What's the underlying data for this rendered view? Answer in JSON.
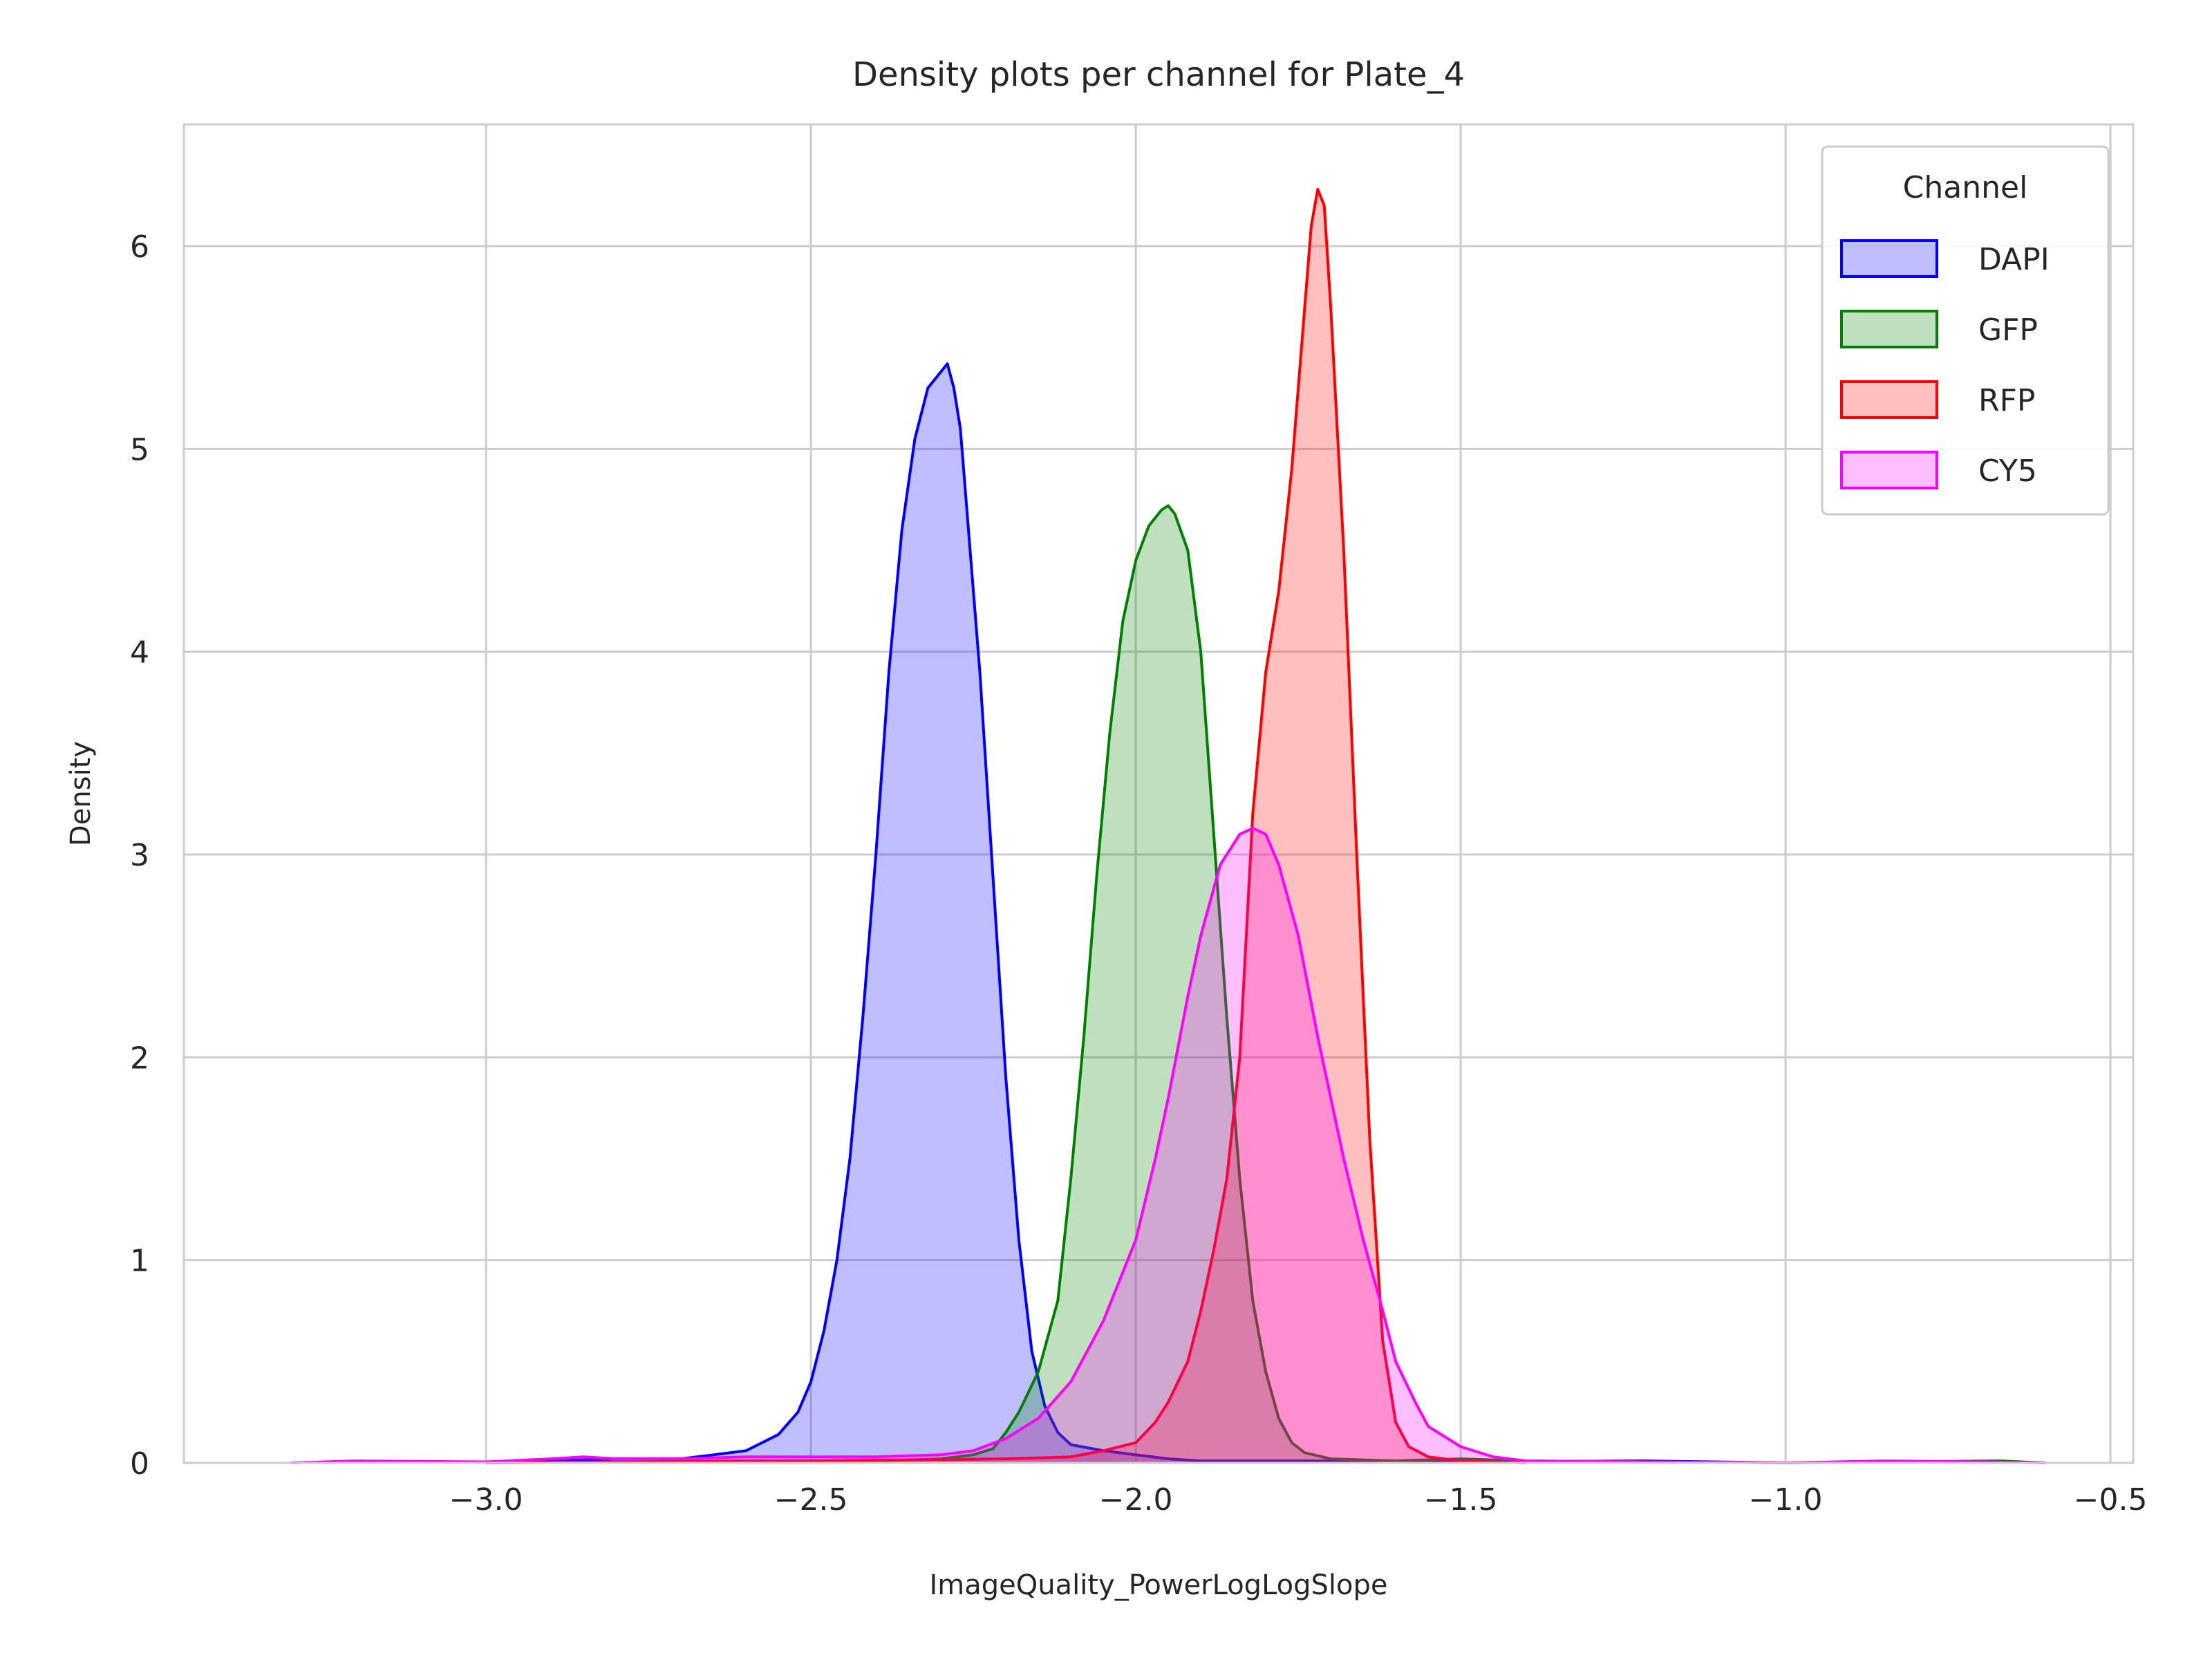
{
  "chart_data": {
    "type": "area",
    "title": "Density plots per channel for Plate_4",
    "xlabel": "ImageQuality_PowerLogLogSlope",
    "ylabel": "Density",
    "xlim": [
      -3.465,
      -0.465
    ],
    "ylim": [
      0,
      6.6
    ],
    "xticks": [
      -3.0,
      -2.5,
      -2.0,
      -1.5,
      -1.0,
      -0.5
    ],
    "xtick_labels": [
      "−3.0",
      "−2.5",
      "−2.0",
      "−1.5",
      "−1.0",
      "−0.5"
    ],
    "yticks": [
      0,
      1,
      2,
      3,
      4,
      5,
      6
    ],
    "ytick_labels": [
      "0",
      "1",
      "2",
      "3",
      "4",
      "5",
      "6"
    ],
    "grid": true,
    "legend": {
      "title": "Channel",
      "position": "top-right"
    },
    "series": [
      {
        "name": "DAPI",
        "color": "#0000ff",
        "fill_opacity": 0.25,
        "points": [
          [
            -3.0,
            0.0
          ],
          [
            -2.9,
            0.01
          ],
          [
            -2.8,
            0.02
          ],
          [
            -2.7,
            0.02
          ],
          [
            -2.65,
            0.04
          ],
          [
            -2.6,
            0.06
          ],
          [
            -2.55,
            0.14
          ],
          [
            -2.52,
            0.25
          ],
          [
            -2.5,
            0.4
          ],
          [
            -2.48,
            0.65
          ],
          [
            -2.46,
            1.0
          ],
          [
            -2.44,
            1.5
          ],
          [
            -2.42,
            2.2
          ],
          [
            -2.4,
            3.0
          ],
          [
            -2.38,
            3.9
          ],
          [
            -2.36,
            4.6
          ],
          [
            -2.34,
            5.05
          ],
          [
            -2.32,
            5.3
          ],
          [
            -2.3,
            5.38
          ],
          [
            -2.29,
            5.42
          ],
          [
            -2.28,
            5.3
          ],
          [
            -2.27,
            5.1
          ],
          [
            -2.26,
            4.7
          ],
          [
            -2.24,
            3.9
          ],
          [
            -2.22,
            2.9
          ],
          [
            -2.2,
            1.9
          ],
          [
            -2.18,
            1.1
          ],
          [
            -2.16,
            0.55
          ],
          [
            -2.14,
            0.28
          ],
          [
            -2.12,
            0.15
          ],
          [
            -2.1,
            0.09
          ],
          [
            -2.05,
            0.06
          ],
          [
            -2.0,
            0.04
          ],
          [
            -1.95,
            0.02
          ],
          [
            -1.9,
            0.01
          ],
          [
            -1.7,
            0.01
          ],
          [
            -1.5,
            0.005
          ],
          [
            -1.22,
            0.01
          ],
          [
            -1.0,
            0.0
          ]
        ]
      },
      {
        "name": "GFP",
        "color": "#008000",
        "fill_opacity": 0.25,
        "points": [
          [
            -3.0,
            0.0
          ],
          [
            -2.6,
            0.01
          ],
          [
            -2.4,
            0.01
          ],
          [
            -2.3,
            0.02
          ],
          [
            -2.25,
            0.04
          ],
          [
            -2.22,
            0.07
          ],
          [
            -2.2,
            0.15
          ],
          [
            -2.18,
            0.25
          ],
          [
            -2.15,
            0.45
          ],
          [
            -2.12,
            0.8
          ],
          [
            -2.1,
            1.4
          ],
          [
            -2.08,
            2.1
          ],
          [
            -2.06,
            2.9
          ],
          [
            -2.04,
            3.6
          ],
          [
            -2.02,
            4.15
          ],
          [
            -2.0,
            4.45
          ],
          [
            -1.98,
            4.62
          ],
          [
            -1.96,
            4.7
          ],
          [
            -1.95,
            4.72
          ],
          [
            -1.94,
            4.68
          ],
          [
            -1.92,
            4.5
          ],
          [
            -1.9,
            4.0
          ],
          [
            -1.88,
            3.1
          ],
          [
            -1.86,
            2.2
          ],
          [
            -1.84,
            1.4
          ],
          [
            -1.82,
            0.8
          ],
          [
            -1.8,
            0.45
          ],
          [
            -1.78,
            0.22
          ],
          [
            -1.76,
            0.1
          ],
          [
            -1.74,
            0.05
          ],
          [
            -1.7,
            0.02
          ],
          [
            -1.6,
            0.01
          ],
          [
            -1.5,
            0.02
          ],
          [
            -1.4,
            0.01
          ],
          [
            -1.0,
            0.0
          ],
          [
            -0.67,
            0.01
          ],
          [
            -0.6,
            0.0
          ]
        ]
      },
      {
        "name": "RFP",
        "color": "#ff0000",
        "fill_opacity": 0.25,
        "points": [
          [
            -3.0,
            0.0
          ],
          [
            -2.5,
            0.01
          ],
          [
            -2.2,
            0.02
          ],
          [
            -2.1,
            0.03
          ],
          [
            -2.05,
            0.06
          ],
          [
            -2.0,
            0.1
          ],
          [
            -1.97,
            0.2
          ],
          [
            -1.95,
            0.3
          ],
          [
            -1.92,
            0.5
          ],
          [
            -1.9,
            0.75
          ],
          [
            -1.88,
            1.05
          ],
          [
            -1.86,
            1.4
          ],
          [
            -1.84,
            2.0
          ],
          [
            -1.82,
            3.2
          ],
          [
            -1.8,
            3.9
          ],
          [
            -1.78,
            4.3
          ],
          [
            -1.76,
            4.9
          ],
          [
            -1.74,
            5.7
          ],
          [
            -1.73,
            6.1
          ],
          [
            -1.72,
            6.28
          ],
          [
            -1.71,
            6.2
          ],
          [
            -1.7,
            5.7
          ],
          [
            -1.68,
            4.5
          ],
          [
            -1.66,
            3.0
          ],
          [
            -1.64,
            1.6
          ],
          [
            -1.62,
            0.6
          ],
          [
            -1.6,
            0.2
          ],
          [
            -1.58,
            0.08
          ],
          [
            -1.55,
            0.03
          ],
          [
            -1.5,
            0.01
          ],
          [
            -1.4,
            0.0
          ]
        ]
      },
      {
        "name": "CY5",
        "color": "#ff00ff",
        "fill_opacity": 0.25,
        "points": [
          [
            -3.3,
            0.0
          ],
          [
            -3.2,
            0.01
          ],
          [
            -3.0,
            0.005
          ],
          [
            -2.9,
            0.02
          ],
          [
            -2.85,
            0.03
          ],
          [
            -2.8,
            0.02
          ],
          [
            -2.7,
            0.02
          ],
          [
            -2.6,
            0.03
          ],
          [
            -2.5,
            0.03
          ],
          [
            -2.4,
            0.03
          ],
          [
            -2.3,
            0.04
          ],
          [
            -2.25,
            0.06
          ],
          [
            -2.2,
            0.12
          ],
          [
            -2.15,
            0.22
          ],
          [
            -2.1,
            0.4
          ],
          [
            -2.05,
            0.7
          ],
          [
            -2.0,
            1.1
          ],
          [
            -1.97,
            1.5
          ],
          [
            -1.95,
            1.8
          ],
          [
            -1.92,
            2.3
          ],
          [
            -1.9,
            2.6
          ],
          [
            -1.87,
            2.95
          ],
          [
            -1.84,
            3.1
          ],
          [
            -1.82,
            3.13
          ],
          [
            -1.8,
            3.1
          ],
          [
            -1.78,
            2.95
          ],
          [
            -1.75,
            2.6
          ],
          [
            -1.72,
            2.1
          ],
          [
            -1.7,
            1.8
          ],
          [
            -1.68,
            1.5
          ],
          [
            -1.65,
            1.1
          ],
          [
            -1.62,
            0.75
          ],
          [
            -1.6,
            0.5
          ],
          [
            -1.57,
            0.3
          ],
          [
            -1.55,
            0.18
          ],
          [
            -1.5,
            0.08
          ],
          [
            -1.45,
            0.03
          ],
          [
            -1.4,
            0.01
          ],
          [
            -1.2,
            0.005
          ],
          [
            -1.0,
            0.0
          ],
          [
            -0.85,
            0.01
          ],
          [
            -0.7,
            0.005
          ],
          [
            -0.6,
            0.0
          ]
        ]
      }
    ]
  }
}
